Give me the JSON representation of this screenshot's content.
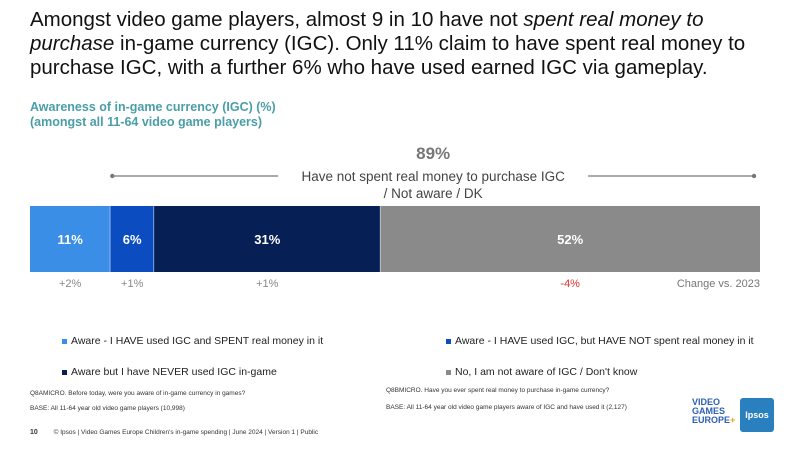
{
  "headline": {
    "part1": "Amongst video game players, almost 9 in 10 have not ",
    "emphasis": "spent real money to purchase",
    "part2": " in-game currency (IGC). Only 11% claim to have spent real money to purchase IGC, with a further 6% who have used earned IGC via gameplay."
  },
  "subtitle": {
    "line1": "Awareness of in-game currency (IGC) (%)",
    "line2": "(amongst all 11-64 video game players)"
  },
  "chart_data": {
    "type": "bar",
    "orientation": "horizontal-stacked",
    "unit": "%",
    "bracket": {
      "value": "89%",
      "label_line1": "Have not spent real money to purchase IGC",
      "label_line2": "/ Not aware / DK",
      "spans_segments": [
        1,
        2,
        3
      ]
    },
    "series": [
      {
        "name": "Aware - I HAVE used IGC and SPENT real money in it",
        "value": 11,
        "label": "11%",
        "change": "+2%",
        "color": "#3a8ee6",
        "change_color": "#888888"
      },
      {
        "name": "Aware - I HAVE used IGC, but HAVE NOT spent real money in it",
        "value": 6,
        "label": "6%",
        "change": "+1%",
        "color": "#0b4dc0",
        "change_color": "#888888"
      },
      {
        "name": "Aware but I have NEVER used IGC in-game",
        "value": 31,
        "label": "31%",
        "change": "+1%",
        "color": "#061f55",
        "change_color": "#888888"
      },
      {
        "name": "No, I am not aware of IGC / Don't know",
        "value": 52,
        "label": "52%",
        "change": "-4%",
        "color": "#8a8a8a",
        "change_color": "#e0302a"
      }
    ],
    "change_label": "Change vs. 2023",
    "bracket_color": "#777777",
    "bracket_value_color": "#777777"
  },
  "notes": {
    "q1": "Q8AMICRO. Before today, were you aware of in-game currency in games?",
    "base1": "BASE: All 11-64 year old video game players (10,998)",
    "q2": "Q8BMICRO. Have you ever spent real money to purchase in-game currency?",
    "base2": "BASE: All 11-64 year old video game players aware of IGC and have used it (2,127)"
  },
  "footer": {
    "page": "10",
    "text": "© Ipsos | Video Games Europe Children's in-game spending | June 2024 | Version 1 | Public"
  },
  "logos": {
    "vge_line1": "VIDEO",
    "vge_line2": "GAMES",
    "vge_line3": "EUROPE",
    "vge_plus": "+",
    "ipsos": "Ipsos"
  }
}
